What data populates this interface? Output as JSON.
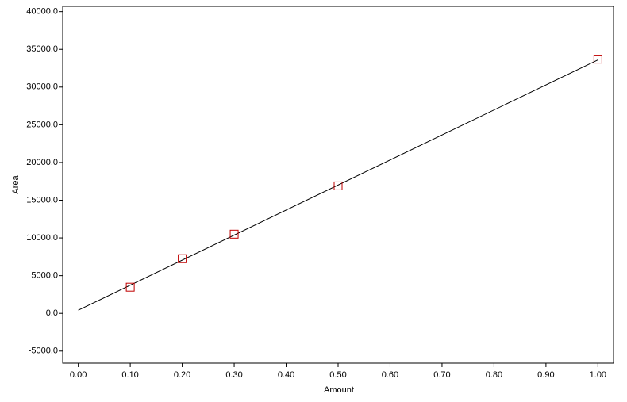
{
  "chart_data": {
    "type": "scatter",
    "x_label": "Amount",
    "y_label": "Area",
    "points": {
      "color": "#c00000",
      "x": [
        0.1,
        0.2,
        0.3,
        0.5,
        1.0
      ],
      "values": [
        3470,
        7250,
        10500,
        16900,
        33700
      ]
    },
    "fit_line": {
      "color": "#000000",
      "x": [
        0.0,
        1.0
      ],
      "values": [
        420,
        33600
      ]
    },
    "xlim": [
      -0.03,
      1.03
    ],
    "ylim": [
      -6600,
      40700
    ],
    "xticks": [
      {
        "value": 0,
        "label": "0.00"
      },
      {
        "value": 0.1,
        "label": "0.10"
      },
      {
        "value": 0.2,
        "label": "0.20"
      },
      {
        "value": 0.3,
        "label": "0.30"
      },
      {
        "value": 0.4,
        "label": "0.40"
      },
      {
        "value": 0.5,
        "label": "0.50"
      },
      {
        "value": 0.6,
        "label": "0.60"
      },
      {
        "value": 0.7,
        "label": "0.70"
      },
      {
        "value": 0.8,
        "label": "0.80"
      },
      {
        "value": 0.9,
        "label": "0.90"
      },
      {
        "value": 1.0,
        "label": "1.00"
      }
    ],
    "yticks": [
      {
        "value": -5000,
        "label": "-5000.0"
      },
      {
        "value": 0,
        "label": "0.0"
      },
      {
        "value": 5000,
        "label": "5000.0"
      },
      {
        "value": 10000,
        "label": "10000.0"
      },
      {
        "value": 15000,
        "label": "15000.0"
      },
      {
        "value": 20000,
        "label": "20000.0"
      },
      {
        "value": 25000,
        "label": "25000.0"
      },
      {
        "value": 30000,
        "label": "30000.0"
      },
      {
        "value": 35000,
        "label": "35000.0"
      },
      {
        "value": 40000,
        "label": "40000.0"
      }
    ],
    "grid": false
  }
}
